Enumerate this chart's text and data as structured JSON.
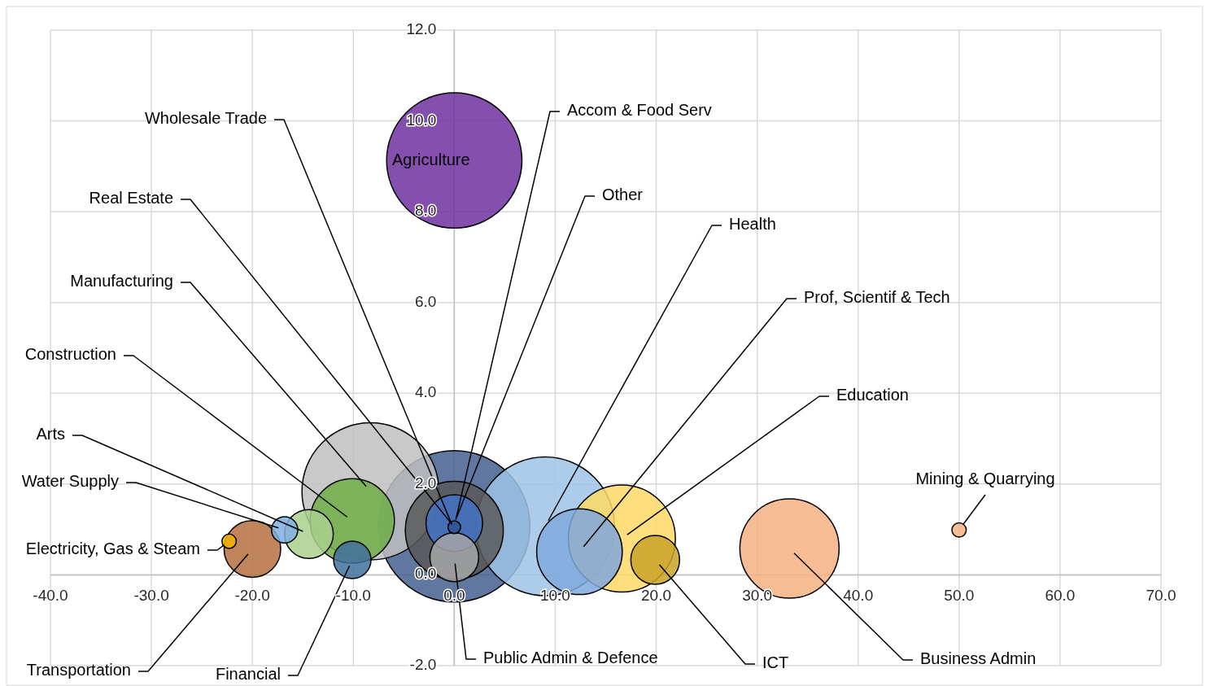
{
  "chart_data": {
    "type": "bubble",
    "series": [
      {
        "name": "Agriculture",
        "color": "#7030a0",
        "x": [
          0
        ],
        "values": [
          9.13
        ],
        "sizes": [
          0.8
        ]
      },
      {
        "name": "Mining & Quarrying",
        "color": "#f4b183",
        "x": [
          50.0
        ],
        "values": [
          0.99
        ],
        "sizes": [
          0.009
        ]
      },
      {
        "name": "Business Admin",
        "color": "#f4b183",
        "x": [
          33.2
        ],
        "values": [
          0.58
        ],
        "sizes": [
          0.43
        ]
      },
      {
        "name": "ICT",
        "color": "#c9a227",
        "x": [
          19.9
        ],
        "values": [
          0.33
        ],
        "sizes": [
          0.104
        ]
      },
      {
        "name": "Education",
        "color": "#ffd966",
        "x": [
          16.6
        ],
        "values": [
          0.8
        ],
        "sizes": [
          0.5
        ]
      },
      {
        "name": "Prof, Scientif & Tech",
        "color": "#7fa8dc",
        "x": [
          12.4
        ],
        "values": [
          0.51
        ],
        "sizes": [
          0.32
        ]
      },
      {
        "name": "Health",
        "color": "#9dc3e6",
        "x": [
          9.0
        ],
        "values": [
          1.07
        ],
        "sizes": [
          0.84
        ]
      },
      {
        "name": "Public Admin & Defence",
        "color": "#a6a6a6",
        "x": [
          0
        ],
        "values": [
          0.39
        ],
        "sizes": [
          0.104
        ]
      },
      {
        "name": "Other",
        "color": "#4472c4",
        "x": [
          0
        ],
        "values": [
          1.14
        ],
        "sizes": [
          0.14
        ]
      },
      {
        "name": "Accom & Food Serv",
        "color": "#44608f",
        "x": [
          0
        ],
        "values": [
          1.07
        ],
        "sizes": [
          1
        ]
      },
      {
        "name": "Wholesale Trade",
        "color": "#595959",
        "x": [
          0
        ],
        "values": [
          0.98
        ],
        "sizes": [
          0.42
        ]
      },
      {
        "name": "Real Estate",
        "color": "#2f5597",
        "x": [
          0
        ],
        "values": [
          1.05
        ],
        "sizes": [
          0.007
        ]
      },
      {
        "name": "Manufacturing",
        "color": "#bfbfbf",
        "x": [
          -8.3
        ],
        "values": [
          1.84
        ],
        "sizes": [
          0.82
        ]
      },
      {
        "name": "Construction",
        "color": "#70ad47",
        "x": [
          -10.1
        ],
        "values": [
          1.19
        ],
        "sizes": [
          0.31
        ]
      },
      {
        "name": "Financial",
        "color": "#41719c",
        "x": [
          -10.1
        ],
        "values": [
          0.33
        ],
        "sizes": [
          0.061
        ]
      },
      {
        "name": "Arts",
        "color": "#a9d18e",
        "x": [
          -14.4
        ],
        "values": [
          0.9
        ],
        "sizes": [
          0.104
        ]
      },
      {
        "name": "Water Supply",
        "color": "#7fb0e0",
        "x": [
          -16.8
        ],
        "values": [
          0.99
        ],
        "sizes": [
          0.03
        ]
      },
      {
        "name": "Transportation",
        "color": "#b5703f",
        "x": [
          -20.0
        ],
        "values": [
          0.57
        ],
        "sizes": [
          0.14
        ]
      },
      {
        "name": "Electricity, Gas & Steam",
        "color": "#f2b400",
        "x": [
          -22.3
        ],
        "values": [
          0.74
        ],
        "sizes": [
          0.009
        ]
      }
    ],
    "xlim": [
      -40,
      70
    ],
    "ylim": [
      -2,
      12
    ],
    "xticks": [
      {
        "value": -40,
        "label": "-40.0"
      },
      {
        "value": -30,
        "label": "-30.0"
      },
      {
        "value": -20,
        "label": "-20.0"
      },
      {
        "value": -10,
        "label": "-10.0"
      },
      {
        "value": 0,
        "label": "0.0"
      },
      {
        "value": 10,
        "label": "10.0"
      },
      {
        "value": 20,
        "label": "20.0"
      },
      {
        "value": 30,
        "label": "30.0"
      },
      {
        "value": 40,
        "label": "40.0"
      },
      {
        "value": 50,
        "label": "50.0"
      },
      {
        "value": 60,
        "label": "60.0"
      },
      {
        "value": 70,
        "label": "70.0"
      }
    ],
    "yticks": [
      {
        "value": -2,
        "label": "-2.0"
      },
      {
        "value": 0,
        "label": "0.0"
      },
      {
        "value": 2,
        "label": "2.0"
      },
      {
        "value": 4,
        "label": "4.0"
      },
      {
        "value": 6,
        "label": "6.0"
      },
      {
        "value": 8,
        "label": "8.0"
      },
      {
        "value": 10,
        "label": "10.0"
      },
      {
        "value": 12,
        "label": "12.0"
      }
    ],
    "grid": true
  }
}
